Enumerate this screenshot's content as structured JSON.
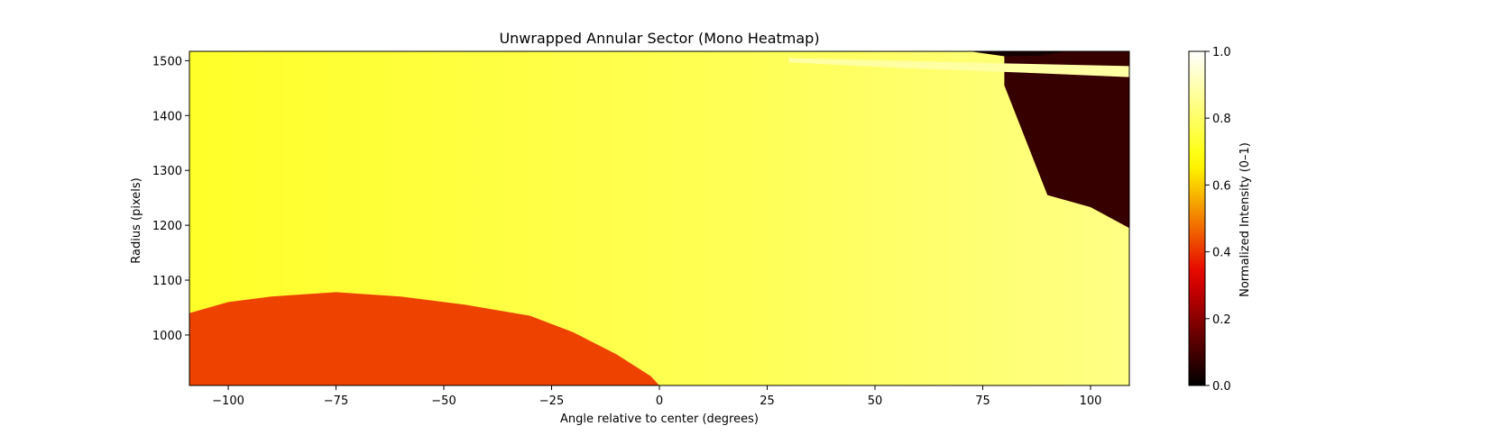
{
  "chart_data": {
    "type": "heatmap",
    "title": "Unwrapped Annular Sector (Mono Heatmap)",
    "xlabel": "Angle relative to center (degrees)",
    "ylabel": "Radius (pixels)",
    "xlim": [
      -109,
      109
    ],
    "ylim": [
      908,
      1517
    ],
    "xticks": [
      -100,
      -75,
      -50,
      -25,
      0,
      25,
      50,
      75,
      100
    ],
    "xtick_labels": [
      "−100",
      "−75",
      "−50",
      "−25",
      "0",
      "25",
      "50",
      "75",
      "100"
    ],
    "yticks": [
      1000,
      1100,
      1200,
      1300,
      1400,
      1500
    ],
    "ytick_labels": [
      "1000",
      "1100",
      "1200",
      "1300",
      "1400",
      "1500"
    ],
    "colormap": "hot",
    "colormap_stops": [
      "#000000",
      "#e60000",
      "#ffff00",
      "#ffffff"
    ],
    "grid": false,
    "colorbar": {
      "label": "Normalized Intensity (0–1)",
      "range": [
        0.0,
        1.0
      ],
      "ticks": [
        0.0,
        0.2,
        0.4,
        0.6,
        0.8,
        1.0
      ],
      "tick_labels": [
        "0.0",
        "0.2",
        "0.4",
        "0.6",
        "0.8",
        "1.0"
      ]
    },
    "regions": [
      {
        "name": "background",
        "intensity": 0.76,
        "shape": "fill"
      },
      {
        "name": "lower-left-low-intensity-lobe",
        "intensity": 0.42,
        "boundary": [
          [
            -109,
            908
          ],
          [
            -109,
            1040
          ],
          [
            -100,
            1060
          ],
          [
            -90,
            1070
          ],
          [
            -75,
            1078
          ],
          [
            -60,
            1070
          ],
          [
            -45,
            1055
          ],
          [
            -30,
            1035
          ],
          [
            -20,
            1005
          ],
          [
            -10,
            965
          ],
          [
            -2,
            925
          ],
          [
            0,
            908
          ]
        ]
      },
      {
        "name": "upper-right-dark-region",
        "intensity": 0.08,
        "boundary": [
          [
            80,
            1517
          ],
          [
            80,
            1455
          ],
          [
            90,
            1255
          ],
          [
            100,
            1233
          ],
          [
            109,
            1195
          ],
          [
            109,
            1517
          ]
        ]
      },
      {
        "name": "top-right-bright-band",
        "intensity": 0.88,
        "boundary": [
          [
            30,
            1505
          ],
          [
            55,
            1500
          ],
          [
            80,
            1495
          ],
          [
            109,
            1490
          ],
          [
            109,
            1470
          ],
          [
            85,
            1478
          ],
          [
            55,
            1487
          ],
          [
            30,
            1497
          ]
        ]
      },
      {
        "name": "top-dark-arc",
        "intensity": 0.03,
        "boundary": [
          [
            72,
            1517
          ],
          [
            80,
            1508
          ],
          [
            88,
            1509
          ],
          [
            95,
            1517
          ]
        ]
      }
    ]
  }
}
